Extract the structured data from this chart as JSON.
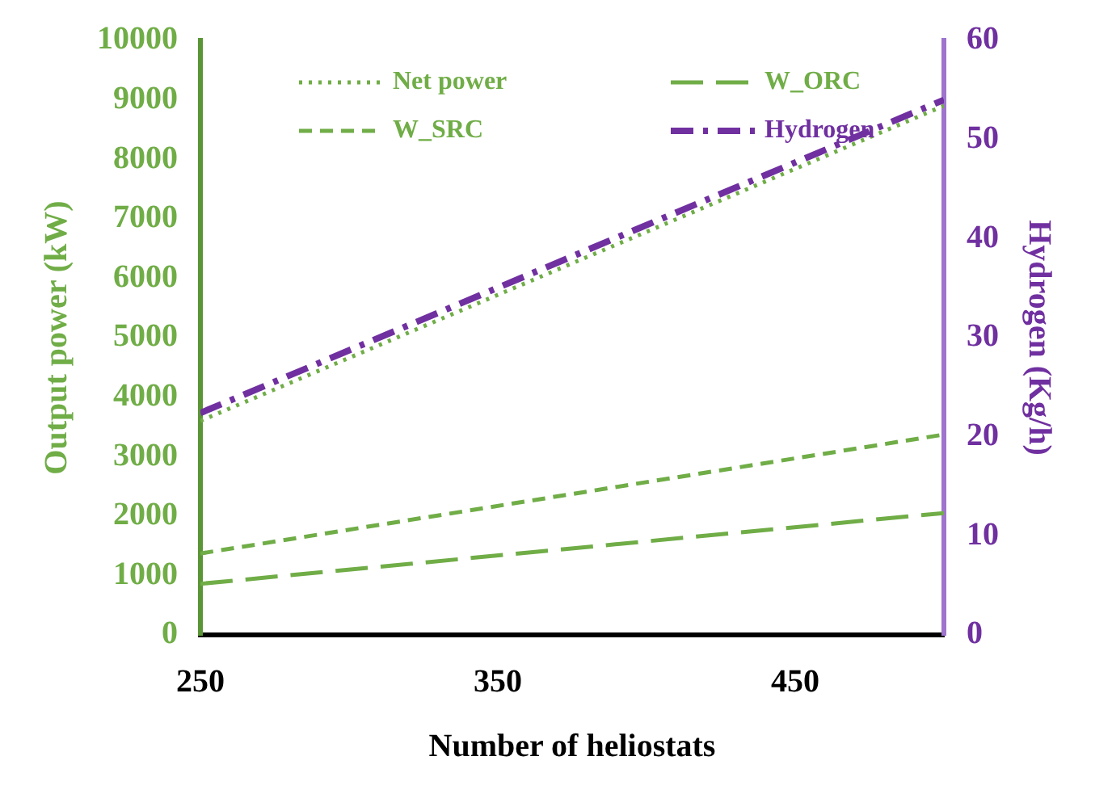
{
  "chart_data": {
    "type": "line",
    "xlabel": "Number of heliostats",
    "ylabel": "Output power (kW)",
    "y2label": "Hydrogen (Kg/h)",
    "x": [
      250,
      500
    ],
    "xlim": [
      250,
      500
    ],
    "xticks": [
      250,
      350,
      450
    ],
    "ylim": [
      0,
      10000
    ],
    "yticks": [
      0,
      1000,
      2000,
      3000,
      4000,
      5000,
      6000,
      7000,
      8000,
      9000,
      10000
    ],
    "y2lim": [
      0,
      60
    ],
    "y2ticks": [
      0,
      10,
      20,
      30,
      40,
      50,
      60
    ],
    "grid": false,
    "legend": "top",
    "marker": "none",
    "series": [
      {
        "name": "Net power",
        "color": "#70ad47",
        "values": [
          3600,
          8900
        ],
        "line_style": "dotted"
      },
      {
        "name": "W_ORC",
        "color": "#70ad47",
        "values": [
          860,
          2050
        ],
        "line_style": "longdash"
      },
      {
        "name": "W_SRC",
        "color": "#70ad47",
        "values": [
          1370,
          3370
        ],
        "line_style": "dashed"
      },
      {
        "name": "Hydrogen",
        "color": "#7030a0",
        "values": [
          22.4,
          54
        ],
        "line_style": "dashdot",
        "axis": "y2"
      }
    ]
  }
}
